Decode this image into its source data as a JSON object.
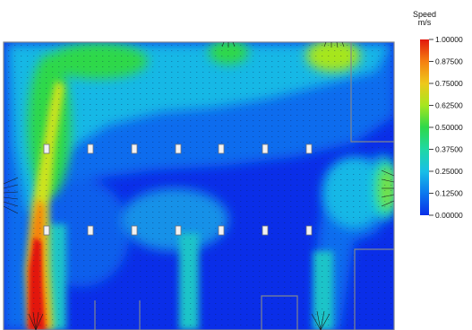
{
  "legend": {
    "title": "Speed",
    "unit": "m/s",
    "labels": [
      "1.00000",
      "0.87500",
      "0.75000",
      "0.62500",
      "0.50000",
      "0.37500",
      "0.25000",
      "0.12500",
      "0.00000"
    ],
    "colors": [
      "#e2180c",
      "#f57f10",
      "#eec81a",
      "#a6e61f",
      "#2ed84a",
      "#1fd8a4",
      "#18bfe6",
      "#0b78ee",
      "#0a2ee8"
    ]
  },
  "plot": {
    "background_color": "#0a2ee8",
    "wall_color": "#7f8690"
  }
}
